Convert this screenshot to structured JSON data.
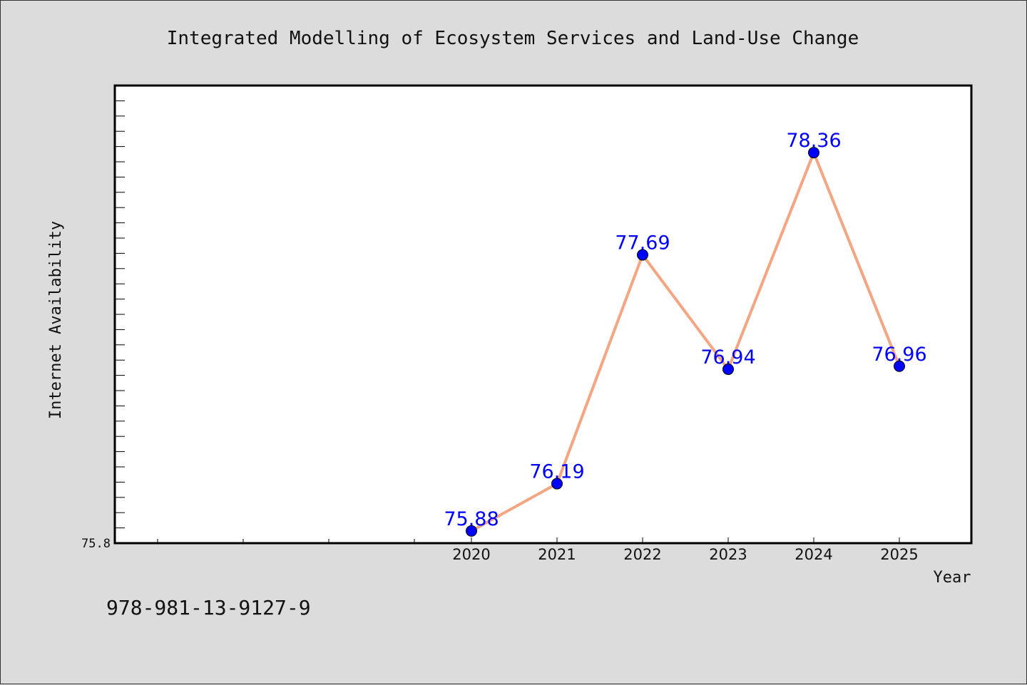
{
  "chart_data": {
    "type": "line",
    "title": "Integrated Modelling of Ecosystem Services and Land-Use Change",
    "xlabel": "Year",
    "ylabel": "Internet Availability",
    "x": [
      "2020",
      "2021",
      "2022",
      "2023",
      "2024",
      "2025"
    ],
    "series": [
      {
        "values": [
          75.88,
          76.19,
          77.69,
          76.94,
          78.36,
          76.96
        ]
      }
    ],
    "data_labels": [
      "75.88",
      "76.19",
      "77.69",
      "76.94",
      "78.36",
      "76.96"
    ],
    "ylim": [
      75.8,
      78.8
    ],
    "y_tick_labels": [
      "75.8"
    ],
    "grid": false,
    "line_color": "#f4a582",
    "marker_color": "#0000ff",
    "label_color": "#0000ff"
  },
  "footer": {
    "identifier": "978-981-13-9127-9"
  }
}
